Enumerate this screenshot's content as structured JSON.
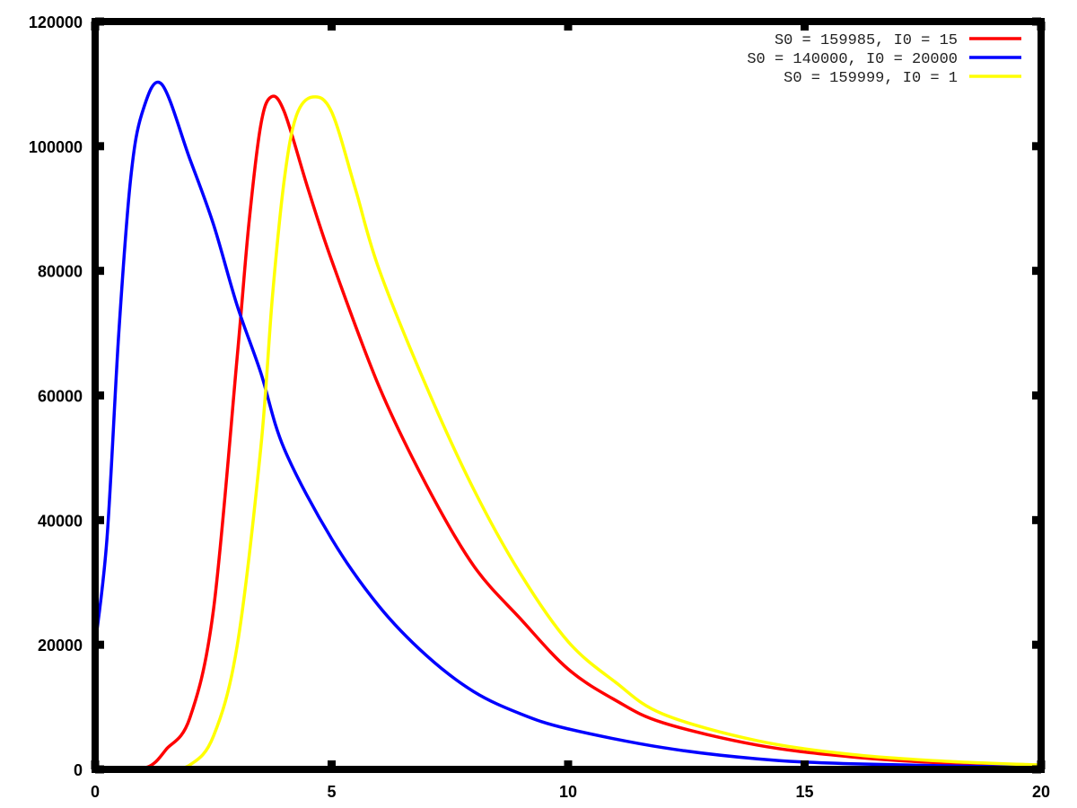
{
  "chart_data": {
    "type": "line",
    "title": "",
    "xlabel": "",
    "ylabel": "",
    "xlim": [
      0,
      20
    ],
    "ylim": [
      0,
      120000
    ],
    "xticks": [
      0,
      5,
      10,
      15,
      20
    ],
    "yticks": [
      0,
      20000,
      40000,
      60000,
      80000,
      100000,
      120000
    ],
    "grid": false,
    "legend_position": "top-right",
    "series": [
      {
        "name": "S0 = 159985, I0 = 15",
        "color": "#ff0000",
        "x": [
          0,
          0.5,
          1,
          1.25,
          1.5,
          2,
          2.5,
          3,
          3.25,
          3.5,
          3.72,
          4,
          4.5,
          5,
          6,
          7,
          8,
          9,
          10,
          11,
          12,
          14,
          16,
          18,
          20
        ],
        "y": [
          15,
          40,
          200,
          1000,
          3200,
          8200,
          25500,
          65900,
          87500,
          103300,
          107900,
          105500,
          93200,
          81700,
          61500,
          45700,
          32700,
          24100,
          16100,
          11100,
          7500,
          3900,
          2000,
          1000,
          500
        ]
      },
      {
        "name": "S0 = 140000, I0 = 20000",
        "color": "#0000ff",
        "x": [
          0,
          0.25,
          0.5,
          0.75,
          1,
          1.4,
          2,
          2.5,
          3,
          3.5,
          4,
          5,
          6,
          7,
          8,
          9,
          10,
          12,
          14,
          16,
          20
        ],
        "y": [
          20000,
          37000,
          70000,
          94700,
          105500,
          110000,
          98000,
          87500,
          74500,
          63700,
          51400,
          37000,
          26200,
          18300,
          12500,
          8900,
          6500,
          3500,
          1700,
          900,
          300
        ]
      },
      {
        "name": "S0 = 159999, I0 = 1",
        "color": "#ffff00",
        "x": [
          0,
          1,
          1.5,
          2,
          2.5,
          3,
          3.5,
          3.75,
          4,
          4.25,
          4.6,
          5,
          5.5,
          6,
          7,
          8,
          9,
          10,
          11,
          12,
          14,
          16,
          18,
          20
        ],
        "y": [
          1,
          10,
          100,
          700,
          5300,
          19700,
          51400,
          76000,
          94700,
          104800,
          107900,
          105500,
          93200,
          80300,
          61500,
          45000,
          31300,
          20500,
          14000,
          8900,
          4600,
          2400,
          1300,
          700
        ]
      }
    ]
  }
}
